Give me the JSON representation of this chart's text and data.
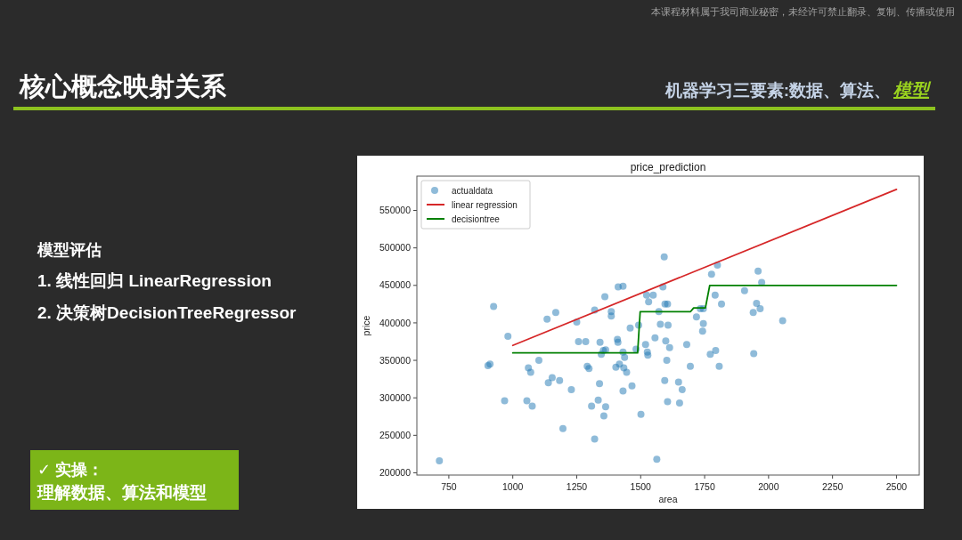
{
  "chart_data": {
    "type": "scatter",
    "title": "price_prediction",
    "xlabel": "area",
    "ylabel": "price",
    "xlim": [
      625,
      2589
    ],
    "ylim": [
      197000,
      595700
    ],
    "xticks": [
      750,
      1000,
      1250,
      1500,
      1750,
      2000,
      2250,
      2500
    ],
    "yticks": [
      200000,
      250000,
      300000,
      350000,
      400000,
      450000,
      500000,
      550000
    ],
    "legend": "top left",
    "annotations": [
      "本课程材料属于我司商业秘密，未经许可禁止翻录、复制、传播或使用",
      "核心概念映射关系",
      "机器学习三要素:数据、算法、",
      "模型",
      "模型评估",
      "1. 线性回归 LinearRegression",
      "2. 决策树DecisionTreeRegressor",
      "✓  实操：",
      "理解数据、算法和模型"
    ],
    "series": [
      {
        "name": "actualdata",
        "type": "scatter",
        "marker": "circle",
        "color": "#1f77b4",
        "x": [
          713,
          925,
          981,
          903,
          911,
          968,
          1055,
          1076,
          1061,
          1070,
          1102,
          1134,
          1168,
          1139,
          1154,
          1183,
          1196,
          1229,
          1250,
          1257,
          1285,
          1291,
          1298,
          1320,
          1308,
          1320,
          1334,
          1339,
          1341,
          1346,
          1354,
          1363,
          1360,
          1363,
          1356,
          1385,
          1385,
          1412,
          1431,
          1409,
          1411,
          1403,
          1417,
          1431,
          1437,
          1434,
          1445,
          1431,
          1459,
          1466,
          1482,
          1492,
          1501,
          1519,
          1526,
          1528,
          1523,
          1531,
          1549,
          1556,
          1563,
          1571,
          1577,
          1587,
          1592,
          1595,
          1605,
          1598,
          1607,
          1613,
          1602,
          1594,
          1605,
          1648,
          1662,
          1652,
          1680,
          1694,
          1718,
          1733,
          1745,
          1745,
          1742,
          1772,
          1793,
          1807,
          1777,
          1800,
          1791,
          1816,
          1906,
          1940,
          1942,
          1953,
          1967,
          1959,
          1973,
          2055
        ],
        "values": [
          216000,
          422000,
          382000,
          343000,
          345000,
          296000,
          296000,
          289000,
          340000,
          334000,
          350000,
          405000,
          414000,
          320000,
          327000,
          323000,
          259000,
          311000,
          401000,
          375000,
          375000,
          342000,
          339000,
          417000,
          289000,
          245000,
          297000,
          319000,
          374000,
          358000,
          363000,
          364000,
          435000,
          288000,
          276000,
          415000,
          409000,
          448000,
          449000,
          378000,
          374000,
          341000,
          345000,
          361000,
          354000,
          340000,
          334000,
          309000,
          393000,
          316000,
          365000,
          397000,
          278000,
          371000,
          361000,
          357000,
          437000,
          428000,
          437000,
          380000,
          218000,
          415000,
          398000,
          448000,
          488000,
          425000,
          425000,
          376000,
          397000,
          367000,
          350000,
          323000,
          295000,
          321000,
          311000,
          293000,
          371000,
          342000,
          408000,
          419000,
          419000,
          399000,
          389000,
          358000,
          363000,
          342000,
          465000,
          477000,
          437000,
          425000,
          443000,
          414000,
          359000,
          426000,
          419000,
          469000,
          454000,
          403000
        ]
      },
      {
        "name": "linear regression",
        "type": "line",
        "color": "#d62728",
        "x": [
          1000,
          2500
        ],
        "values": [
          370000,
          578000
        ]
      },
      {
        "name": "decisiontree",
        "type": "line",
        "color": "#008000",
        "x": [
          1000,
          1488,
          1498,
          1695,
          1707,
          1753,
          1770,
          2500
        ],
        "values": [
          360000,
          360000,
          415000,
          415000,
          420000,
          420000,
          450000,
          450000
        ]
      }
    ]
  }
}
